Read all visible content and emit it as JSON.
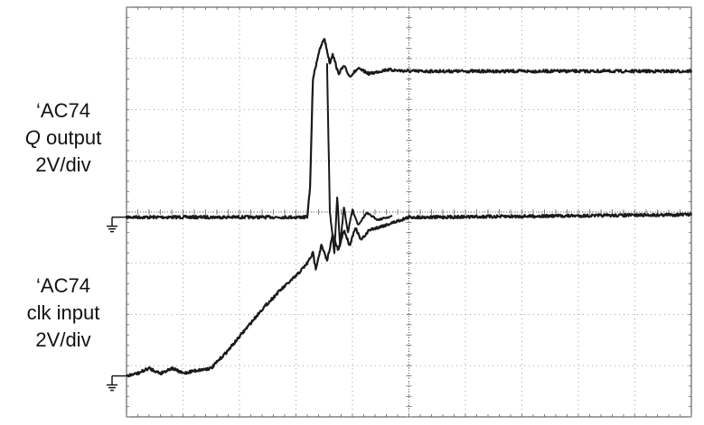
{
  "chart_data": {
    "type": "line",
    "title": "",
    "grid": true,
    "grid_divisions": {
      "x": 10,
      "y": 8
    },
    "ylim_divisions": [
      0,
      8
    ],
    "xlim_divisions": [
      0,
      10
    ],
    "channels": [
      {
        "id": "q",
        "label_lines": [
          {
            "prefix": "‘AC74",
            "italic": "",
            "suffix": ""
          },
          {
            "prefix": "",
            "italic": "Q",
            "suffix": " output"
          },
          {
            "prefix": "",
            "italic": "",
            "suffix": "2V/div"
          }
        ],
        "scale": "2V/div",
        "ground_level_div": 3.9,
        "series": {
          "name": "",
          "x": [
            0,
            3.2,
            3.25,
            3.3,
            3.4,
            3.5,
            3.6,
            3.65,
            3.75,
            3.85,
            3.95,
            4.1,
            4.3,
            4.6,
            5.0,
            10.0
          ],
          "y": [
            3.9,
            3.9,
            4.5,
            6.6,
            7.1,
            7.4,
            6.9,
            7.1,
            6.7,
            6.85,
            6.65,
            6.8,
            6.7,
            6.78,
            6.75,
            6.75
          ]
        },
        "glitch": {
          "x": [
            3.55,
            3.6,
            3.68,
            3.73,
            3.78,
            3.85,
            3.92,
            4.0,
            4.1,
            4.25,
            4.45,
            4.7
          ],
          "y": [
            6.9,
            4.0,
            3.2,
            4.3,
            3.35,
            4.1,
            3.6,
            4.05,
            3.75,
            3.98,
            3.85,
            3.92
          ]
        }
      },
      {
        "id": "clk",
        "label_lines": [
          {
            "prefix": "‘AC74",
            "italic": "",
            "suffix": ""
          },
          {
            "prefix": "",
            "italic": "",
            "suffix": "clk input"
          },
          {
            "prefix": "",
            "italic": "",
            "suffix": "2V/div"
          }
        ],
        "scale": "2V/div",
        "ground_level_div": 0.8,
        "series": {
          "name": "",
          "x": [
            0,
            0.2,
            0.4,
            0.6,
            0.8,
            1.0,
            1.2,
            1.5,
            1.8,
            2.1,
            2.4,
            2.7,
            3.0,
            3.2,
            3.3,
            3.35,
            3.45,
            3.55,
            3.65,
            3.75,
            3.85,
            3.95,
            4.05,
            4.15,
            4.3,
            4.6,
            5.0,
            5.5,
            10.0
          ],
          "y": [
            0.8,
            0.85,
            0.95,
            0.85,
            0.95,
            0.85,
            0.9,
            0.95,
            1.3,
            1.7,
            2.1,
            2.45,
            2.75,
            3.0,
            3.2,
            2.9,
            3.35,
            3.05,
            3.55,
            3.25,
            3.65,
            3.35,
            3.7,
            3.45,
            3.65,
            3.75,
            3.9,
            3.9,
            3.95
          ]
        }
      }
    ]
  }
}
